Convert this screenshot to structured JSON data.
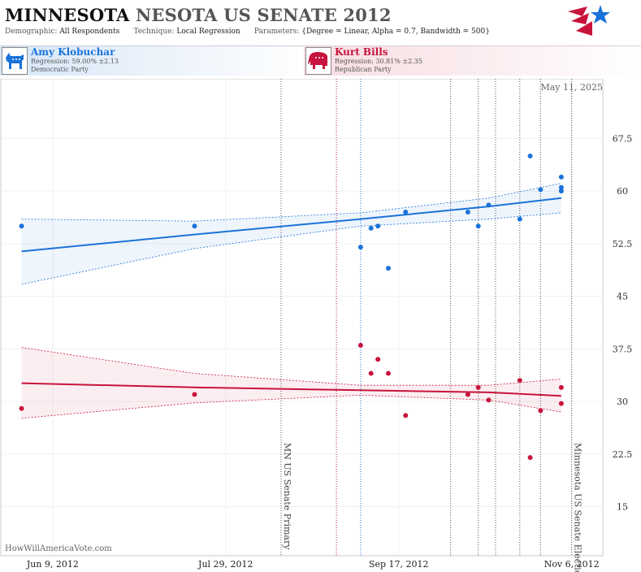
{
  "header": {
    "title_bold": "MINNESOTA",
    "title_rest": "NESOTA US SENATE 2012",
    "params": {
      "demographic_label": "Demographic:",
      "demographic": "All Respondents",
      "technique_label": "Technique:",
      "technique": "Local Regression",
      "parameters_label": "Parameters:",
      "parameters": "{Degree = Linear, Alpha = 0.7, Bandwidth = 500}"
    }
  },
  "candidates": [
    {
      "name": "Amy Klobuchar",
      "regression": "Regression: 59.00% ±2.13",
      "party": "Democratic Party",
      "color": "#1a73d9"
    },
    {
      "name": "Kurt Bills",
      "regression": "Regression: 30.81% ±2.35",
      "party": "Republican Party",
      "color": "#c8143c"
    }
  ],
  "footer": {
    "watermark": "HowWillAmericaVote.com"
  },
  "chart_data": {
    "type": "scatter",
    "date_label": "May 11, 2025",
    "x_ticks": [
      {
        "label": "Jun 9, 2012",
        "date": "2012-06-09"
      },
      {
        "label": "Jul 29, 2012",
        "date": "2012-07-29"
      },
      {
        "label": "Sep 17, 2012",
        "date": "2012-09-17"
      },
      {
        "label": "Nov 6, 2012",
        "date": "2012-11-06"
      }
    ],
    "xlim": [
      "2012-05-25",
      "2012-11-15"
    ],
    "ylim": [
      8,
      76
    ],
    "y_ticks": [
      15,
      22.5,
      30,
      37.5,
      45,
      52.5,
      60,
      67.5
    ],
    "events": [
      {
        "date": "2012-08-14",
        "label": "MN US Senate Primary",
        "color": "#555555"
      },
      {
        "date": "2012-08-30",
        "label": "",
        "color": "#c8143c"
      },
      {
        "date": "2012-09-06",
        "label": "",
        "color": "#1a73d9"
      },
      {
        "date": "2012-10-02",
        "label": "",
        "color": "#555555"
      },
      {
        "date": "2012-10-10",
        "label": "",
        "color": "#555555"
      },
      {
        "date": "2012-10-15",
        "label": "",
        "color": "#555555"
      },
      {
        "date": "2012-10-22",
        "label": "",
        "color": "#555555"
      },
      {
        "date": "2012-10-28",
        "label": "",
        "color": "#555555"
      },
      {
        "date": "2012-11-06",
        "label": "Minnesota US Senate Election",
        "color": "#555555"
      }
    ],
    "series": [
      {
        "name": "Amy Klobuchar",
        "color": "#1a73d9",
        "points": [
          [
            "2012-05-31",
            55
          ],
          [
            "2012-07-20",
            55
          ],
          [
            "2012-09-06",
            52
          ],
          [
            "2012-09-09",
            54.7
          ],
          [
            "2012-09-11",
            55
          ],
          [
            "2012-09-14",
            49
          ],
          [
            "2012-09-19",
            57
          ],
          [
            "2012-10-07",
            57
          ],
          [
            "2012-10-10",
            55
          ],
          [
            "2012-10-13",
            58
          ],
          [
            "2012-10-22",
            56
          ],
          [
            "2012-10-25",
            65
          ],
          [
            "2012-10-28",
            60.2
          ],
          [
            "2012-11-03",
            60.5
          ],
          [
            "2012-11-03",
            60.0
          ],
          [
            "2012-11-03",
            62
          ]
        ],
        "trend": [
          [
            "2012-05-31",
            51.4
          ],
          [
            "2012-07-20",
            53.8
          ],
          [
            "2012-09-06",
            56.0
          ],
          [
            "2012-10-13",
            57.8
          ],
          [
            "2012-11-03",
            59.0
          ]
        ],
        "band_upper": [
          [
            "2012-05-31",
            56.0
          ],
          [
            "2012-07-20",
            55.7
          ],
          [
            "2012-09-06",
            56.9
          ],
          [
            "2012-10-13",
            59.0
          ],
          [
            "2012-11-03",
            61.1
          ]
        ],
        "band_lower": [
          [
            "2012-05-31",
            46.7
          ],
          [
            "2012-07-20",
            51.8
          ],
          [
            "2012-09-06",
            55.0
          ],
          [
            "2012-10-13",
            56.0
          ],
          [
            "2012-11-03",
            56.9
          ]
        ]
      },
      {
        "name": "Kurt Bills",
        "color": "#c8143c",
        "points": [
          [
            "2012-05-31",
            29
          ],
          [
            "2012-07-20",
            31
          ],
          [
            "2012-09-06",
            38
          ],
          [
            "2012-09-09",
            34
          ],
          [
            "2012-09-11",
            36
          ],
          [
            "2012-09-14",
            34
          ],
          [
            "2012-09-19",
            28
          ],
          [
            "2012-10-07",
            31
          ],
          [
            "2012-10-10",
            32
          ],
          [
            "2012-10-13",
            30.2
          ],
          [
            "2012-10-22",
            33
          ],
          [
            "2012-10-25",
            22
          ],
          [
            "2012-10-28",
            28.7
          ],
          [
            "2012-11-03",
            29.7
          ],
          [
            "2012-11-03",
            32
          ]
        ],
        "trend": [
          [
            "2012-05-31",
            32.6
          ],
          [
            "2012-07-20",
            32.0
          ],
          [
            "2012-09-06",
            31.6
          ],
          [
            "2012-10-13",
            31.3
          ],
          [
            "2012-11-03",
            30.8
          ]
        ],
        "band_upper": [
          [
            "2012-05-31",
            37.7
          ],
          [
            "2012-07-20",
            34.0
          ],
          [
            "2012-09-06",
            32.3
          ],
          [
            "2012-10-13",
            32.3
          ],
          [
            "2012-11-03",
            33.2
          ]
        ],
        "band_lower": [
          [
            "2012-05-31",
            27.6
          ],
          [
            "2012-07-20",
            29.8
          ],
          [
            "2012-09-06",
            30.9
          ],
          [
            "2012-10-13",
            30.2
          ],
          [
            "2012-11-03",
            28.5
          ]
        ]
      }
    ]
  }
}
